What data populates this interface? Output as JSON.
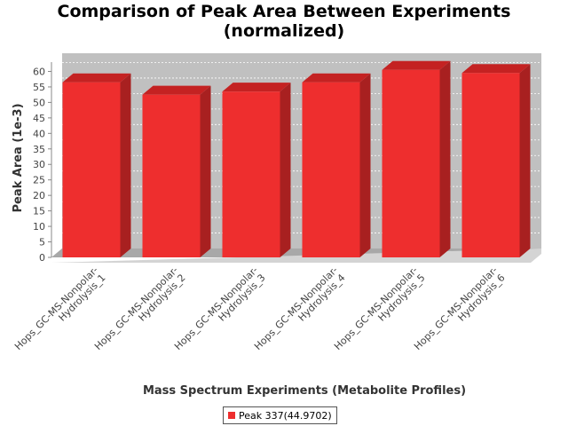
{
  "chart_data": {
    "type": "bar",
    "title_lines": [
      "Comparison of Peak Area Between Experiments",
      "(normalized)"
    ],
    "xlabel": "Mass Spectrum Experiments (Metabolite Profiles)",
    "ylabel": "Peak Area (1e-3)",
    "categories": [
      [
        "Hops_GC-MS-Nonpolar-",
        "Hydrolysis_1"
      ],
      [
        "Hops_GC-MS-Nonpolar-",
        "Hydrolysis_2"
      ],
      [
        "Hops_GC-MS-Nonpolar-",
        "Hydrolysis_3"
      ],
      [
        "Hops_GC-MS-Nonpolar-",
        "Hydrolysis_4"
      ],
      [
        "Hops_GC-MS-Nonpolar-",
        "Hydrolysis_5"
      ],
      [
        "Hops_GC-MS-Nonpolar-",
        "Hydrolysis_6"
      ]
    ],
    "series": [
      {
        "name": "Peak 337(44.9702)",
        "values": [
          56.5,
          52.5,
          53.5,
          56.5,
          60.5,
          59.5
        ]
      }
    ],
    "ylim": [
      0,
      63
    ],
    "yticks": [
      0,
      5,
      10,
      15,
      20,
      25,
      30,
      35,
      40,
      45,
      50,
      55,
      60
    ],
    "grid": true,
    "legend_position": "bottom",
    "colors": {
      "bar_front": "#ee2e2e",
      "bar_top": "#c42222",
      "bar_side": "#a82020",
      "plot_bg": "#c0c0c0"
    }
  }
}
